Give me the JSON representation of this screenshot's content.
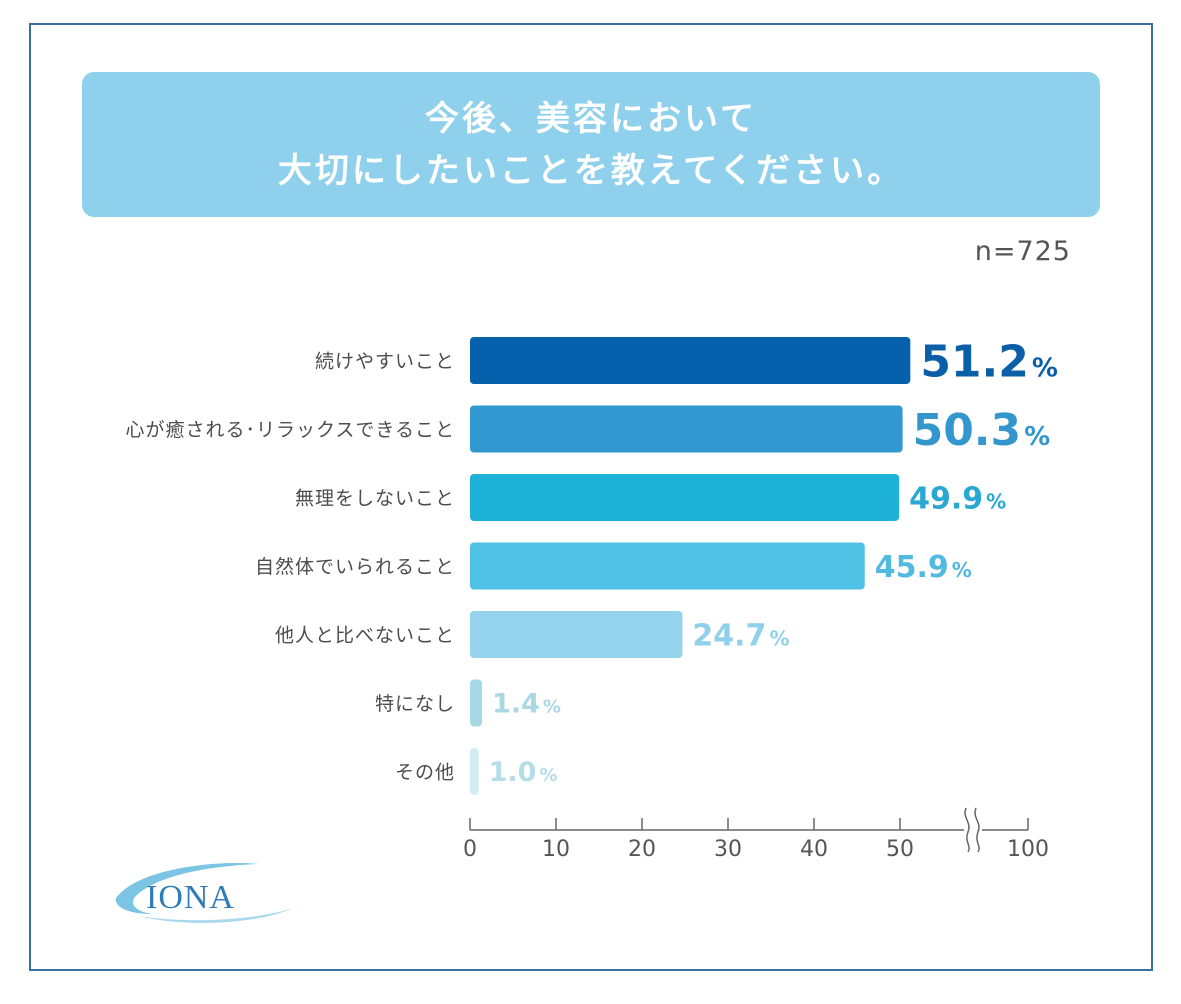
{
  "chart_data": {
    "type": "bar",
    "orientation": "horizontal",
    "title": "今後、美容において\n大切にしたいことを教えてください。",
    "title_lines": [
      "今後、美容において",
      "大切にしたいことを教えてください。"
    ],
    "sample_size": "n=725",
    "categories": [
      "続けやすいこと",
      "心が癒される･リラックスできること",
      "無理をしないこと",
      "自然体でいられること",
      "他人と比べないこと",
      "特になし",
      "その他"
    ],
    "values": [
      51.2,
      50.3,
      49.9,
      45.9,
      24.7,
      1.4,
      1.0
    ],
    "value_labels": [
      "51.2",
      "50.3",
      "49.9",
      "45.9",
      "24.7",
      "1.4",
      "1.0"
    ],
    "unit": "%",
    "colors": [
      "#0561ab",
      "#3298d0",
      "#1fb2d9",
      "#4ec1e4",
      "#93d3ec",
      "#a5d9e6",
      "#d2ecf4"
    ],
    "label_colors": [
      "#0a5fa6",
      "#3396cc",
      "#2aa8d4",
      "#52b9df",
      "#8fd0ea",
      "#a9d8e4",
      "#b5dde8"
    ],
    "xaxis": {
      "ticks": [
        0,
        10,
        20,
        30,
        40,
        50,
        100
      ],
      "tick_labels": [
        "0",
        "10",
        "20",
        "30",
        "40",
        "50",
        "100"
      ],
      "range": [
        0,
        100
      ],
      "axis_break": "between 50 and 100"
    },
    "xlabel": "",
    "ylabel": "",
    "grid": false,
    "legend": "none"
  },
  "branding": {
    "logo_text": "IONA"
  },
  "frame_color": "#3a6fa6",
  "title_bg": "#8fd1ec"
}
